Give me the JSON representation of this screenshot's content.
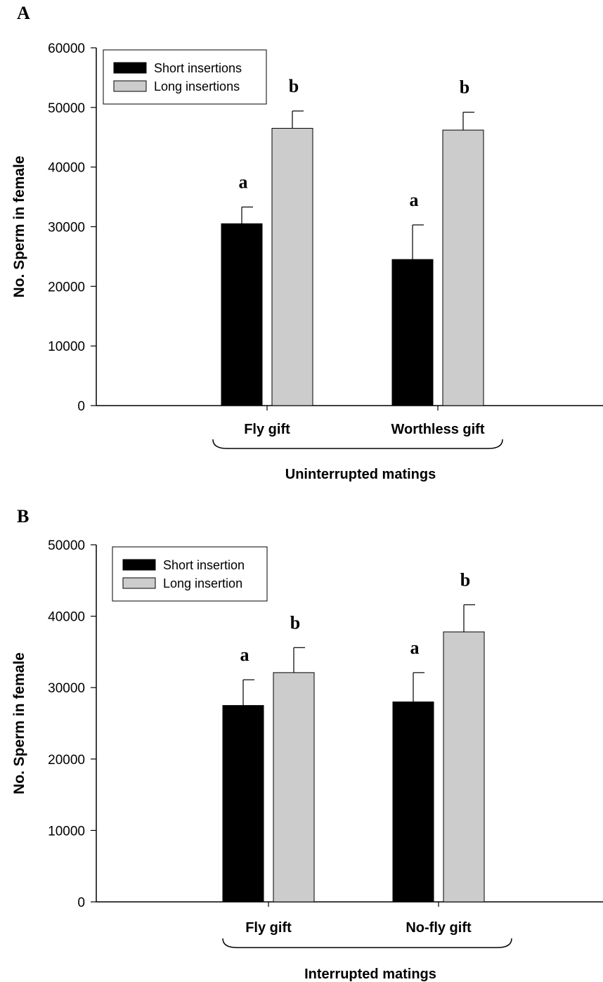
{
  "chart_data": [
    {
      "type": "bar",
      "panel": "A",
      "title": "",
      "ylabel": "No. Sperm in female",
      "xlabel": "Uninterrupted matings",
      "ylim": [
        0,
        60000
      ],
      "yticks": [
        "0",
        "10000",
        "20000",
        "30000",
        "40000",
        "50000",
        "60000"
      ],
      "categories": [
        "Fly gift",
        "Worthless gift"
      ],
      "series": [
        {
          "name": "Short insertions",
          "color": "#000000",
          "values": [
            30500,
            24500
          ],
          "errors": [
            2800,
            5800
          ],
          "letters": [
            "a",
            "a"
          ]
        },
        {
          "name": "Long insertions",
          "color": "#cccccc",
          "values": [
            46500,
            46200
          ],
          "errors": [
            2900,
            3000
          ],
          "letters": [
            "b",
            "b"
          ]
        }
      ],
      "legend_position": "top-left"
    },
    {
      "type": "bar",
      "panel": "B",
      "title": "",
      "ylabel": "No. Sperm in female",
      "xlabel": "Interrupted matings",
      "ylim": [
        0,
        50000
      ],
      "yticks": [
        "0",
        "10000",
        "20000",
        "30000",
        "40000",
        "50000"
      ],
      "categories": [
        "Fly gift",
        "No-fly gift"
      ],
      "series": [
        {
          "name": "Short insertion",
          "color": "#000000",
          "values": [
            27500,
            28000
          ],
          "errors": [
            3600,
            4100
          ],
          "letters": [
            "a",
            "a"
          ]
        },
        {
          "name": "Long insertion",
          "color": "#cccccc",
          "values": [
            32100,
            37800
          ],
          "errors": [
            3500,
            3800
          ],
          "letters": [
            "b",
            "b"
          ]
        }
      ],
      "legend_position": "top-left"
    }
  ]
}
